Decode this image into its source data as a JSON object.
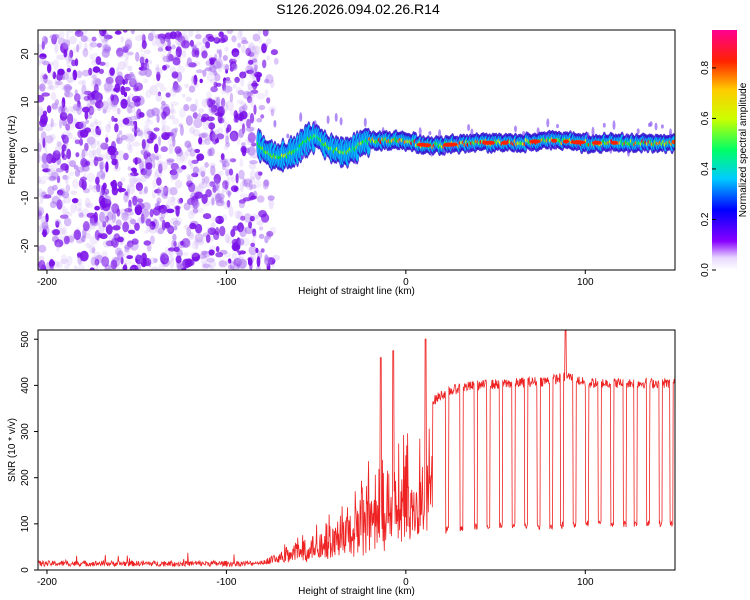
{
  "title": "S126.2026.094.02.26.R14",
  "colors": {
    "snr_line": "#ee2222",
    "axis": "#000000",
    "low_snr_dots": "#8a2be2"
  },
  "chart_data": [
    {
      "type": "heatmap",
      "name": "spectrogram",
      "xlabel": "Height of straight line (km)",
      "ylabel": "Frequency (Hz)",
      "xlim": [
        -205,
        150
      ],
      "ylim": [
        -25,
        25
      ],
      "xticks": [
        -200,
        -100,
        0,
        100
      ],
      "yticks": [
        -20,
        -10,
        0,
        10,
        20
      ],
      "xtick_labels": [
        "-200",
        "-100",
        "0",
        "100"
      ],
      "ytick_labels": [
        "-20",
        "-10",
        "0",
        "10",
        "20"
      ],
      "colorbar": {
        "label": "Normalized spectral amplitude",
        "range": [
          0,
          0.95
        ],
        "ticks": [
          0.0,
          0.2,
          0.4,
          0.6,
          0.8
        ],
        "tick_labels": [
          "0.0",
          "0.2",
          "0.4",
          "0.6",
          "0.8"
        ]
      },
      "noise_region_km": [
        -205,
        -82
      ],
      "signal_start_km": -82,
      "signal_ridge": {
        "x": [
          -82,
          -75,
          -70,
          -65,
          -60,
          -55,
          -50,
          -45,
          -40,
          -35,
          -30,
          -25,
          -20,
          -10,
          0,
          10,
          20,
          40,
          60,
          80,
          100,
          120,
          150
        ],
        "freq_hz": [
          1,
          -1,
          -1.5,
          -1,
          0,
          2,
          3,
          1,
          0,
          -0.5,
          0,
          1,
          2,
          2,
          2,
          1,
          1,
          1.5,
          1.5,
          2,
          1.5,
          1.5,
          1.5
        ]
      }
    },
    {
      "type": "line",
      "name": "snr",
      "xlabel": "Height of straight line (km)",
      "ylabel": "SNR (10 * v/v)",
      "xlim": [
        -205,
        150
      ],
      "ylim": [
        0,
        520
      ],
      "xticks": [
        -200,
        -100,
        0,
        100
      ],
      "yticks": [
        0,
        100,
        200,
        300,
        400,
        500
      ],
      "xtick_labels": [
        "-200",
        "-100",
        "0",
        "100"
      ],
      "ytick_labels": [
        "0",
        "100",
        "200",
        "300",
        "400",
        "500"
      ],
      "series": [
        {
          "name": "SNR",
          "envelope": {
            "x": [
              -205,
              -160,
              -120,
              -95,
              -85,
              -80,
              -70,
              -60,
              -50,
              -40,
              -30,
              -20,
              -10,
              0,
              10,
              20,
              30,
              40,
              60,
              80,
              90,
              100,
              120,
              150
            ],
            "y": [
              15,
              15,
              14,
              15,
              18,
              25,
              50,
              90,
              120,
              150,
              190,
              240,
              270,
              300,
              350,
              380,
              395,
              400,
              405,
              410,
              420,
              405,
              405,
              405
            ]
          },
          "baseline": {
            "x": [
              -205,
              -100,
              -80,
              -60,
              -40,
              -20,
              0,
              10,
              20,
              30,
              40,
              60,
              80,
              100,
              120,
              150
            ],
            "y": [
              12,
              12,
              12,
              15,
              25,
              40,
              60,
              75,
              85,
              90,
              95,
              95,
              95,
              100,
              100,
              100
            ]
          },
          "dropouts_km": [
            23,
            31,
            39,
            46,
            53,
            60,
            67,
            74,
            81,
            87,
            94,
            101,
            108,
            115,
            122,
            128,
            135,
            142,
            148
          ],
          "spikes": [
            {
              "x": -14,
              "y": 460
            },
            {
              "x": -7,
              "y": 475
            },
            {
              "x": 11,
              "y": 500
            },
            {
              "x": 89,
              "y": 525
            }
          ]
        }
      ]
    }
  ]
}
